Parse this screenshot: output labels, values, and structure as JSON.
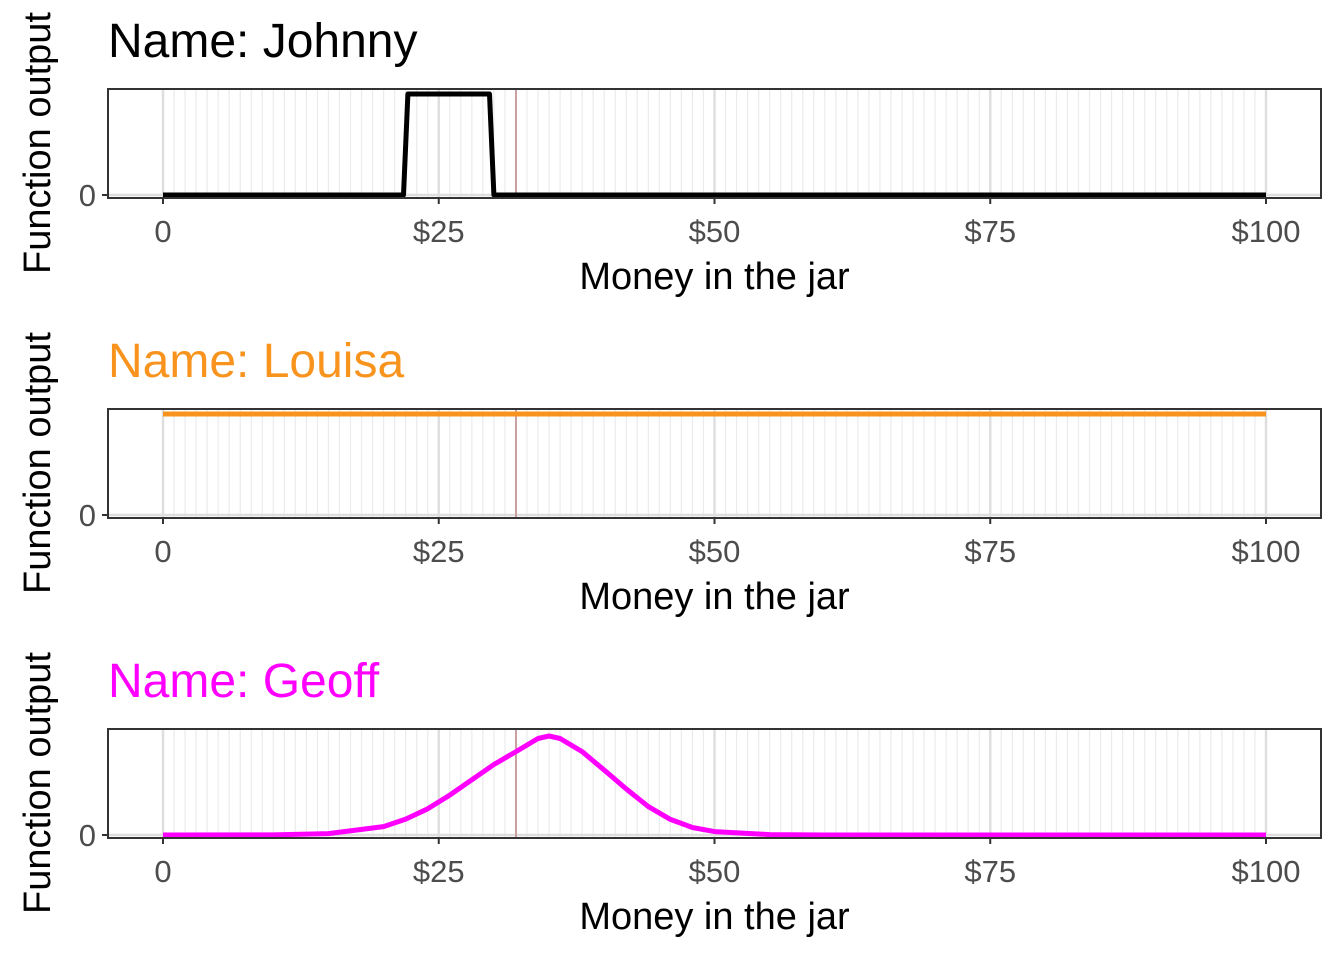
{
  "chart_data": [
    {
      "type": "line",
      "title": "Name: Johnny",
      "title_color": "#000000",
      "line_color": "#000000",
      "xlabel": "Money in the jar",
      "ylabel": "Function output",
      "xlim": [
        0,
        100
      ],
      "ylim": [
        0,
        1
      ],
      "x_ticks": [
        0,
        25,
        50,
        75,
        100
      ],
      "x_tick_labels": [
        "0",
        "$25",
        "$50",
        "$75",
        "$100"
      ],
      "y_ticks": [
        0
      ],
      "y_tick_labels": [
        "0"
      ],
      "reference_line_x": 32,
      "reference_line_color": "#c8a0a0",
      "grid": "major and minor vertical",
      "series": [
        {
          "x": [
            0,
            21.8,
            22.2,
            29.6,
            30,
            100
          ],
          "y": [
            0,
            0,
            1,
            1,
            0,
            0
          ]
        }
      ]
    },
    {
      "type": "line",
      "title": "Name: Louisa",
      "title_color": "#F8941E",
      "line_color": "#F8941E",
      "xlabel": "Money in the jar",
      "ylabel": "Function output",
      "xlim": [
        0,
        100
      ],
      "ylim": [
        0,
        1
      ],
      "x_ticks": [
        0,
        25,
        50,
        75,
        100
      ],
      "x_tick_labels": [
        "0",
        "$25",
        "$50",
        "$75",
        "$100"
      ],
      "y_ticks": [
        0
      ],
      "y_tick_labels": [
        "0"
      ],
      "reference_line_x": 32,
      "reference_line_color": "#c8a0a0",
      "grid": "major and minor vertical",
      "series": [
        {
          "x": [
            0,
            100
          ],
          "y": [
            1,
            1
          ]
        }
      ]
    },
    {
      "type": "line",
      "title": "Name: Geoff",
      "title_color": "#FF00FF",
      "line_color": "#FF00FF",
      "xlabel": "Money in the jar",
      "ylabel": "Function output",
      "xlim": [
        0,
        100
      ],
      "ylim": [
        0,
        1
      ],
      "x_ticks": [
        0,
        25,
        50,
        75,
        100
      ],
      "x_tick_labels": [
        "0",
        "$25",
        "$50",
        "$75",
        "$100"
      ],
      "y_ticks": [
        0
      ],
      "y_tick_labels": [
        "0"
      ],
      "reference_line_x": 32,
      "reference_line_color": "#c8a0a0",
      "grid": "major and minor vertical",
      "series": [
        {
          "x": [
            0,
            10,
            15,
            20,
            22,
            24,
            26,
            28,
            30,
            32,
            34,
            35,
            36,
            38,
            40,
            42,
            44,
            46,
            48,
            50,
            55,
            60,
            100
          ],
          "y": [
            0,
            0.0014,
            0.0136,
            0.0833,
            0.1576,
            0.2598,
            0.3948,
            0.5461,
            0.6977,
            0.8253,
            0.9559,
            0.98,
            0.9559,
            0.8253,
            0.6424,
            0.4551,
            0.2807,
            0.1541,
            0.0745,
            0.0334,
            0.0035,
            0.0003,
            0
          ]
        }
      ]
    }
  ]
}
